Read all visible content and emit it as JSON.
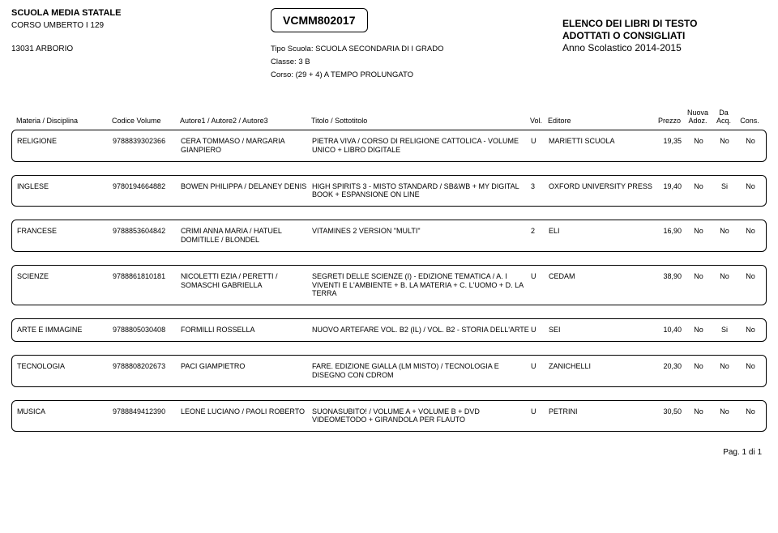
{
  "header": {
    "left": {
      "school": "SCUOLA MEDIA STATALE",
      "corso": "CORSO UMBERTO I 129",
      "cap": "13031  ARBORIO"
    },
    "center": {
      "code": "VCMM802017",
      "tipo_lbl": "Tipo Scuola:",
      "tipo_val": "SCUOLA SECONDARIA DI I GRADO",
      "classe_lbl": "Classe:",
      "classe_val": "3 B",
      "corso_lbl": "Corso:",
      "corso_val": "(29 + 4) A TEMPO PROLUNGATO"
    },
    "right": {
      "line1": "ELENCO DEI LIBRI DI TESTO",
      "line2": "ADOTTATI O CONSIGLIATI",
      "line3": "Anno Scolastico 2014-2015"
    }
  },
  "columns": {
    "mat": "Materia / Disciplina",
    "cod": "Codice Volume",
    "aut": "Autore1 / Autore2 / Autore3",
    "tit": "Titolo / Sottotitolo",
    "vol": "Vol.",
    "edi": "Editore",
    "prz": "Prezzo",
    "na": "Nuova Adoz.",
    "da": "Da Acq.",
    "co": "Cons."
  },
  "rows": [
    {
      "mat": "RELIGIONE",
      "cod": "9788839302366",
      "aut": "CERA TOMMASO / MARGARIA GIANPIERO",
      "tit": "PIETRA VIVA / CORSO DI RELIGIONE CATTOLICA - VOLUME UNICO + LIBRO DIGITALE",
      "vol": "U",
      "edi": "MARIETTI SCUOLA",
      "prz": "19,35",
      "na": "No",
      "da": "No",
      "co": "No"
    },
    {
      "mat": "INGLESE",
      "cod": "9780194664882",
      "aut": "BOWEN PHILIPPA / DELANEY DENIS",
      "tit": "HIGH SPIRITS 3 - MISTO STANDARD / SB&WB + MY DIGITAL BOOK + ESPANSIONE ON LINE",
      "vol": "3",
      "edi": "OXFORD UNIVERSITY PRESS",
      "prz": "19,40",
      "na": "No",
      "da": "Si",
      "co": "No"
    },
    {
      "mat": "FRANCESE",
      "cod": "9788853604842",
      "aut": "CRIMI ANNA MARIA / HATUEL DOMITILLE / BLONDEL",
      "tit": "VITAMINES 2 VERSION \"MULTI\"",
      "vol": "2",
      "edi": "ELI",
      "prz": "16,90",
      "na": "No",
      "da": "No",
      "co": "No"
    },
    {
      "mat": "SCIENZE",
      "cod": "9788861810181",
      "aut": "NICOLETTI EZIA / PERETTI / SOMASCHI GABRIELLA",
      "tit": "SEGRETI DELLE SCIENZE (I) - EDIZIONE TEMATICA / A. I VIVENTI E L'AMBIENTE + B. LA MATERIA + C. L'UOMO + D. LA TERRA",
      "vol": "U",
      "edi": "CEDAM",
      "prz": "38,90",
      "na": "No",
      "da": "No",
      "co": "No"
    },
    {
      "mat": "ARTE E IMMAGINE",
      "cod": "9788805030408",
      "aut": "FORMILLI ROSSELLA",
      "tit": "NUOVO ARTEFARE VOL. B2 (IL) / VOL. B2 - STORIA DELL'ARTE",
      "vol": "U",
      "edi": "SEI",
      "prz": "10,40",
      "na": "No",
      "da": "Si",
      "co": "No"
    },
    {
      "mat": "TECNOLOGIA",
      "cod": "9788808202673",
      "aut": "PACI GIAMPIETRO",
      "tit": "FARE. EDIZIONE GIALLA (LM MISTO) / TECNOLOGIA E DISEGNO CON CDROM",
      "vol": "U",
      "edi": "ZANICHELLI",
      "prz": "20,30",
      "na": "No",
      "da": "No",
      "co": "No"
    },
    {
      "mat": "MUSICA",
      "cod": "9788849412390",
      "aut": "LEONE LUCIANO / PAOLI ROBERTO",
      "tit": "SUONASUBITO! / VOLUME A + VOLUME B + DVD VIDEOMETODO + GIRANDOLA PER FLAUTO",
      "vol": "U",
      "edi": "PETRINI",
      "prz": "30,50",
      "na": "No",
      "da": "No",
      "co": "No"
    }
  ],
  "footer": "Pag. 1 di 1"
}
